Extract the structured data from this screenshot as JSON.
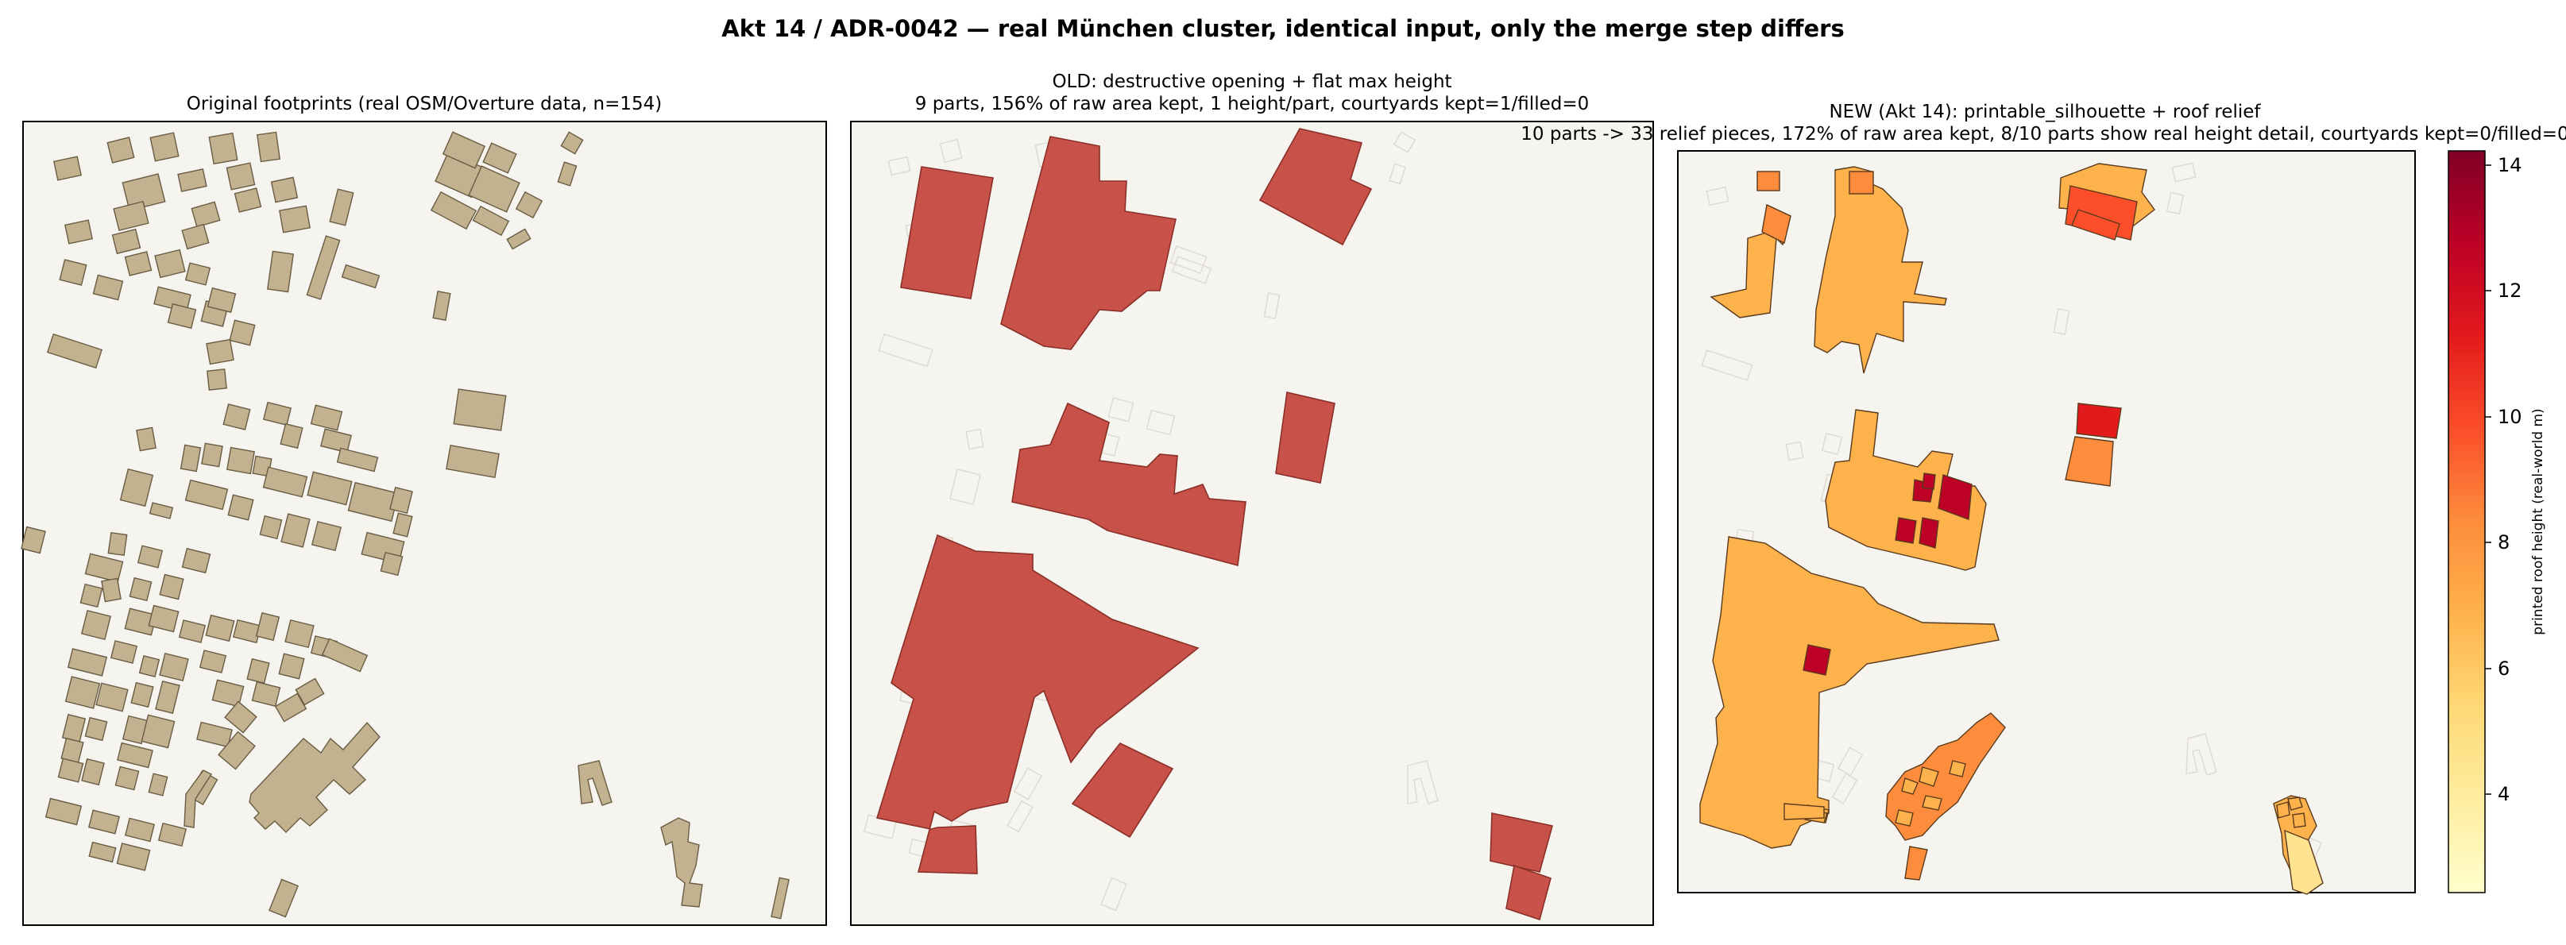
{
  "figure": {
    "title": "Akt 14 / ADR-0042 — real München cluster, identical input, only the merge step differs"
  },
  "panels": [
    {
      "title_line1": "Original footprints (real OSM/Overture data, n=154)",
      "title_line2": ""
    },
    {
      "title_line1": "OLD: destructive opening + flat max height",
      "title_line2": "9 parts, 156% of raw area kept, 1 height/part, courtyards kept=1/filled=0"
    },
    {
      "title_line1": "NEW (Akt 14): printable_silhouette + roof relief",
      "title_line2": "10 parts -> 33 relief pieces, 172% of raw area kept, 8/10 parts show real height detail, courtyards kept=0/filled=0"
    }
  ],
  "colorbar": {
    "label": "printed roof height (real-world m)",
    "ticks": [
      "4",
      "6",
      "8",
      "10",
      "12",
      "14"
    ],
    "range": [
      2.4,
      14.2
    ],
    "colormap": "YlOrRd",
    "colors": [
      "#ffffcc",
      "#ffeda0",
      "#fed976",
      "#feb24c",
      "#fd8d3c",
      "#fc4e2a",
      "#e31a1c",
      "#bd0026",
      "#800026"
    ]
  },
  "colors": {
    "panel_bg": "#f5f4ef",
    "original_fill": "#c2b290",
    "old_fill": "#c8524a"
  },
  "chart_data": [
    {
      "type": "map",
      "title": "Original footprints (real OSM/Overture data, n=154)",
      "series": [
        {
          "name": "footprints",
          "count": 154
        }
      ]
    },
    {
      "type": "map",
      "title": "OLD: destructive opening + flat max height",
      "stats": {
        "parts": 9,
        "raw_area_kept_pct": 156,
        "heights_per_part": 1,
        "courtyards_kept": 1,
        "courtyards_filled": 0
      }
    },
    {
      "type": "map",
      "title": "NEW (Akt 14): printable_silhouette + roof relief",
      "stats": {
        "parts": 10,
        "relief_pieces": 33,
        "raw_area_kept_pct": 172,
        "parts_with_height_detail": 8,
        "courtyards_kept": 0,
        "courtyards_filled": 0
      },
      "height_legend_range_m": [
        2.4,
        14.2
      ]
    }
  ]
}
